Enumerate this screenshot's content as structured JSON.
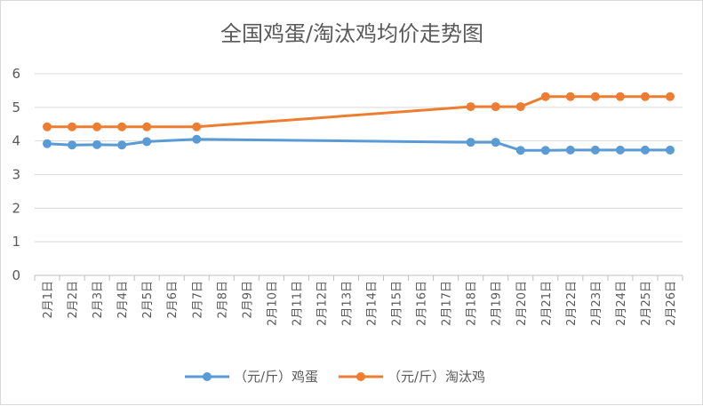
{
  "chart_data": {
    "type": "line",
    "title": "全国鸡蛋/淘汰鸡均价走势图",
    "categories": [
      "2月1日",
      "2月2日",
      "2月3日",
      "2月4日",
      "2月5日",
      "2月6日",
      "2月7日",
      "2月8日",
      "2月9日",
      "2月10日",
      "2月11日",
      "2月12日",
      "2月13日",
      "2月14日",
      "2月15日",
      "2月16日",
      "2月17日",
      "2月18日",
      "2月19日",
      "2月20日",
      "2月21日",
      "2月22日",
      "2月23日",
      "2月24日",
      "2月25日",
      "2月26日"
    ],
    "ylim": [
      0,
      6
    ],
    "yticks": [
      "0",
      "1",
      "2",
      "3",
      "4",
      "5",
      "6"
    ],
    "grid": true,
    "legend_position": "bottom",
    "series": [
      {
        "name": "（元/斤）鸡蛋",
        "color": "#5b9bd5",
        "values": [
          3.92,
          3.88,
          3.89,
          3.88,
          3.98,
          null,
          4.05,
          null,
          null,
          null,
          null,
          null,
          null,
          null,
          null,
          null,
          null,
          3.96,
          3.96,
          3.72,
          3.72,
          3.73,
          3.73,
          3.73,
          3.73,
          3.73
        ]
      },
      {
        "name": "（元/斤）淘汰鸡",
        "color": "#ed7d31",
        "values": [
          4.42,
          4.42,
          4.42,
          4.42,
          4.42,
          null,
          4.42,
          null,
          null,
          null,
          null,
          null,
          null,
          null,
          null,
          null,
          null,
          5.02,
          5.02,
          5.02,
          5.32,
          5.32,
          5.32,
          5.32,
          5.32,
          5.32
        ]
      }
    ]
  }
}
